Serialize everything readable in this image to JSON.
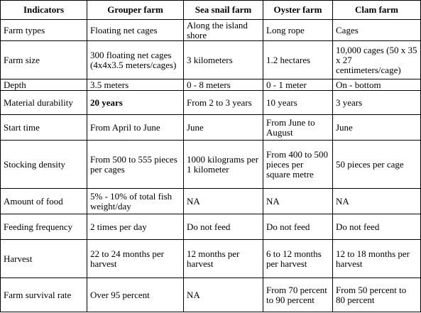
{
  "table": {
    "header": [
      "Indicators",
      "Grouper farm",
      "Sea snail farm",
      "Oyster farm",
      "Clam farm"
    ],
    "rows": [
      [
        "Farm types",
        "Floating net cages",
        "Along the island shore",
        "Long rope",
        "Cages"
      ],
      [
        "Farm size",
        "300 floating net cages (4x4x3.5 meters/cages)",
        "3 kilometers",
        "1.2 hectares",
        "10,000 cages (50 x 35 x 27 centimeters/cage)"
      ],
      [
        "Depth",
        "3.5 meters",
        "0 - 8 meters",
        "0 - 1 meter",
        "On - bottom"
      ],
      [
        "Material durability",
        "20 years",
        "From 2 to 3 years",
        "10 years",
        "3 years"
      ],
      [
        "Start time",
        "From April to June",
        "June",
        "From June to August",
        "June"
      ],
      [
        "Stocking density",
        "From 500 to 555 pieces per cages",
        "1000 kilograms per 1 kilometer",
        "From 400 to 500 pieces per square metre",
        "50 pieces per cage"
      ],
      [
        "Amount of food",
        "5% - 10% of total fish weight/day",
        "NA",
        "NA",
        "NA"
      ],
      [
        "Feeding frequency",
        "2 times per day",
        "Do not feed",
        "Do not feed",
        "Do not feed"
      ],
      [
        "Harvest",
        "22 to 24 months per harvest",
        "12 months per harvest",
        "6 to 12 months per harvest",
        "12 to 18 months per harvest"
      ],
      [
        "Farm survival rate",
        "Over 95 percent",
        "NA",
        "From 70 percent to 90 percent",
        "From 50 percent to 80 percent"
      ]
    ]
  }
}
